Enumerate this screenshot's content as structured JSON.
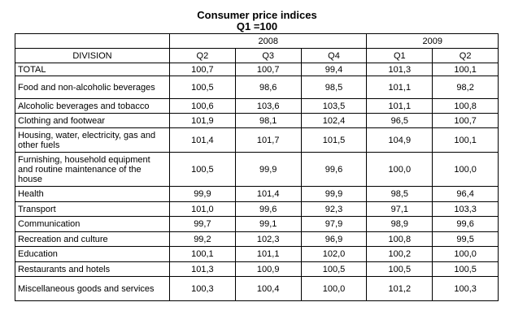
{
  "title": {
    "line1": "Consumer price indices",
    "line2": "Q1 =100"
  },
  "table": {
    "years": [
      {
        "label": "2008",
        "span": 3
      },
      {
        "label": "2009",
        "span": 2
      }
    ],
    "division_header": "DIVISION",
    "columns": [
      "Q2",
      "Q3",
      "Q4",
      "Q1",
      "Q2"
    ],
    "rows": [
      {
        "division": "TOTAL",
        "values": [
          "100,7",
          "100,7",
          "99,4",
          "101,3",
          "100,1"
        ]
      },
      {
        "division": "Food and non-alcoholic beverages",
        "values": [
          "100,5",
          "98,6",
          "98,5",
          "101,1",
          "98,2"
        ]
      },
      {
        "division": "Alcoholic beverages and tobacco",
        "values": [
          "100,6",
          "103,6",
          "103,5",
          "101,1",
          "100,8"
        ]
      },
      {
        "division": "Clothing and footwear",
        "values": [
          "101,9",
          "98,1",
          "102,4",
          "96,5",
          "100,7"
        ]
      },
      {
        "division": "Housing, water, electricity, gas and other fuels",
        "values": [
          "101,4",
          "101,7",
          "101,5",
          "104,9",
          "100,1"
        ]
      },
      {
        "division": "Furnishing, household equipment and routine maintenance of the house",
        "values": [
          "100,5",
          "99,9",
          "99,6",
          "100,0",
          "100,0"
        ]
      },
      {
        "division": "Health",
        "values": [
          "99,9",
          "101,4",
          "99,9",
          "98,5",
          "96,4"
        ]
      },
      {
        "division": "Transport",
        "values": [
          "101,0",
          "99,6",
          "92,3",
          "97,1",
          "103,3"
        ]
      },
      {
        "division": "Communication",
        "values": [
          "99,7",
          "99,1",
          "97,9",
          "98,9",
          "99,6"
        ]
      },
      {
        "division": "Recreation and culture",
        "values": [
          "99,2",
          "102,3",
          "96,9",
          "100,8",
          "99,5"
        ]
      },
      {
        "division": "Education",
        "values": [
          "100,1",
          "101,1",
          "102,0",
          "100,2",
          "100,0"
        ]
      },
      {
        "division": "Restaurants and hotels",
        "values": [
          "101,3",
          "100,9",
          "100,5",
          "100,5",
          "100,5"
        ]
      },
      {
        "division": "Miscellaneous goods and services",
        "values": [
          "100,3",
          "100,4",
          "100,0",
          "101,2",
          "100,3"
        ]
      }
    ]
  }
}
